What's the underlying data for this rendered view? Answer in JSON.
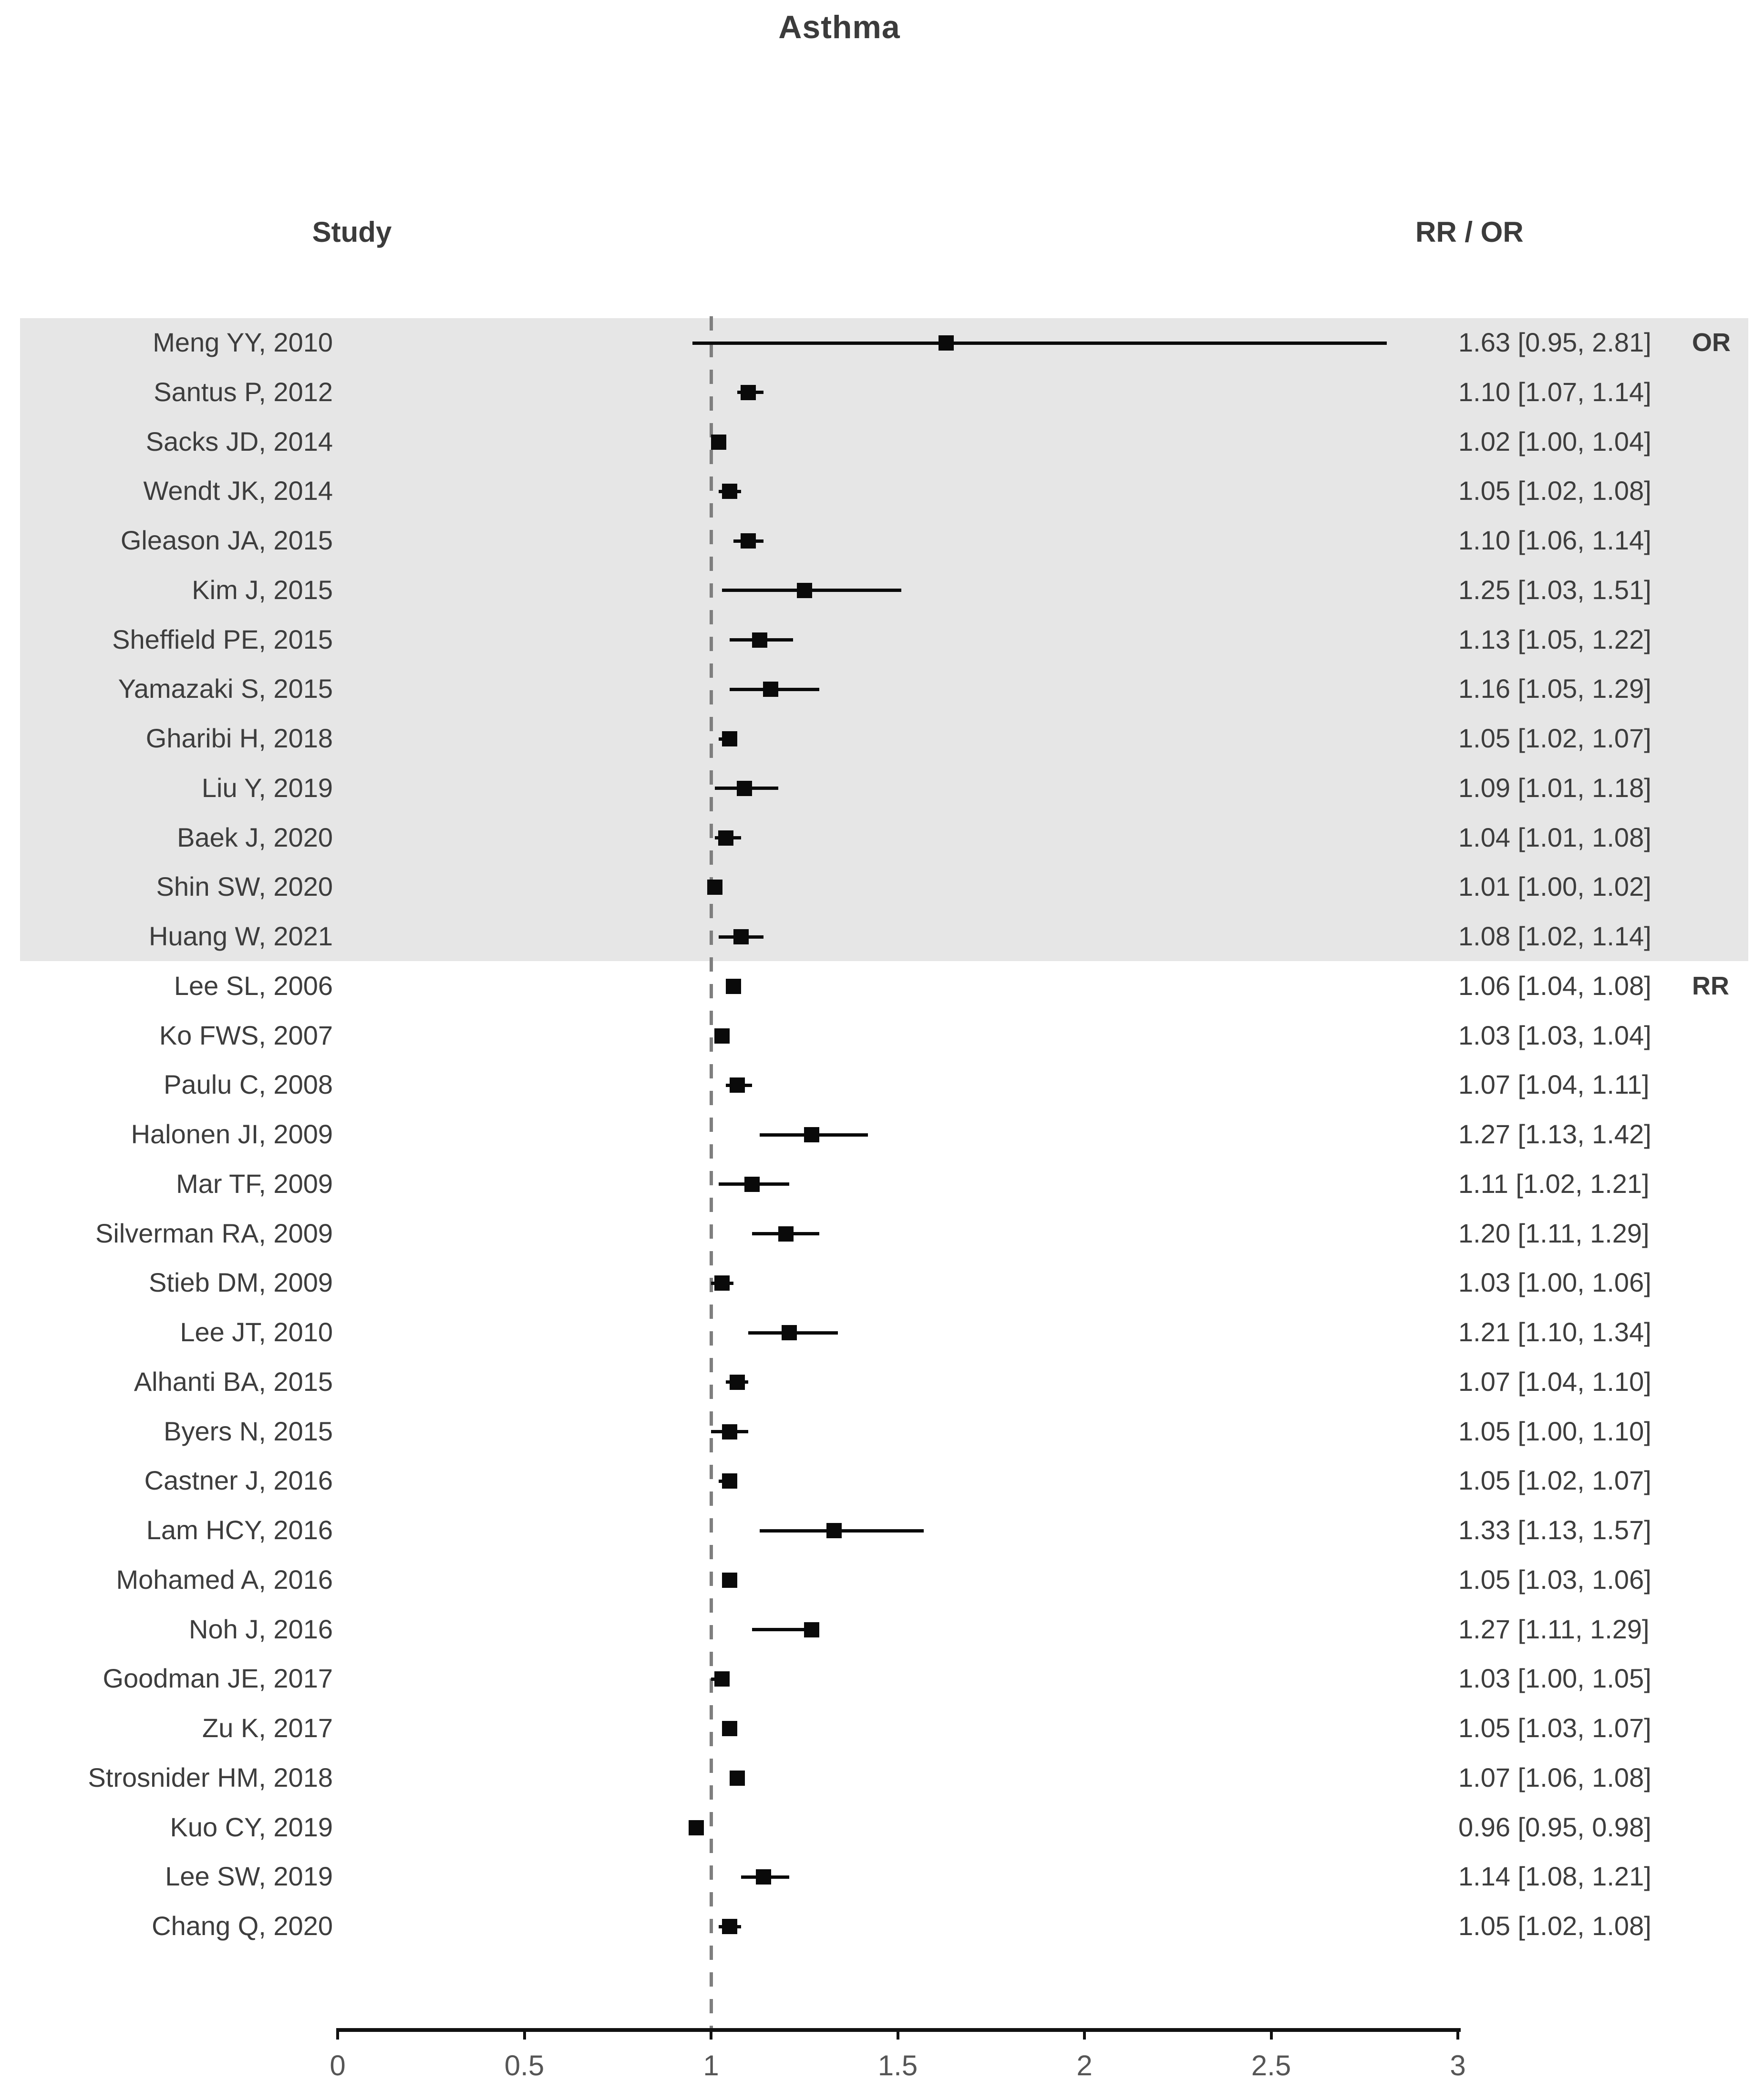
{
  "title": "Asthma",
  "headers": {
    "study": "Study",
    "effect": "RR / OR"
  },
  "colors": {
    "background": "#ffffff",
    "shaded_band": "#e6e6e6",
    "text": "#3d3d3d",
    "marker": "#0a0a0a",
    "reference_line": "#7f7f7f",
    "axis": "#111111",
    "tick_label": "#565656"
  },
  "chart_data": {
    "type": "forest",
    "title": "Asthma",
    "xlabel": "",
    "xlim": [
      0,
      3
    ],
    "x_ticks": [
      "0",
      "0.5",
      "1",
      "1.5",
      "2",
      "2.5",
      "3"
    ],
    "x_tick_values": [
      0,
      0.5,
      1,
      1.5,
      2,
      2.5,
      3
    ],
    "reference_line": 1,
    "grid": false,
    "legend": "none",
    "effect_column_header": "RR / OR",
    "study_column_header": "Study",
    "groups": [
      {
        "tag": "OR",
        "shaded": true,
        "n_studies": 13
      },
      {
        "tag": "RR",
        "shaded": false,
        "n_studies": 20
      }
    ],
    "studies": [
      {
        "study": "Meng YY, 2010",
        "estimate": 1.63,
        "lower": 0.95,
        "upper": 2.81,
        "label": "1.63 [0.95, 2.81]",
        "tag": "OR",
        "shaded": true
      },
      {
        "study": "Santus P, 2012",
        "estimate": 1.1,
        "lower": 1.07,
        "upper": 1.14,
        "label": "1.10 [1.07, 1.14]",
        "tag": "",
        "shaded": true
      },
      {
        "study": "Sacks JD, 2014",
        "estimate": 1.02,
        "lower": 1.0,
        "upper": 1.04,
        "label": "1.02 [1.00, 1.04]",
        "tag": "",
        "shaded": true
      },
      {
        "study": "Wendt JK, 2014",
        "estimate": 1.05,
        "lower": 1.02,
        "upper": 1.08,
        "label": "1.05 [1.02, 1.08]",
        "tag": "",
        "shaded": true
      },
      {
        "study": "Gleason JA, 2015",
        "estimate": 1.1,
        "lower": 1.06,
        "upper": 1.14,
        "label": "1.10 [1.06, 1.14]",
        "tag": "",
        "shaded": true
      },
      {
        "study": "Kim J, 2015",
        "estimate": 1.25,
        "lower": 1.03,
        "upper": 1.51,
        "label": "1.25 [1.03, 1.51]",
        "tag": "",
        "shaded": true
      },
      {
        "study": "Sheffield PE, 2015",
        "estimate": 1.13,
        "lower": 1.05,
        "upper": 1.22,
        "label": "1.13 [1.05, 1.22]",
        "tag": "",
        "shaded": true
      },
      {
        "study": "Yamazaki S, 2015",
        "estimate": 1.16,
        "lower": 1.05,
        "upper": 1.29,
        "label": "1.16 [1.05, 1.29]",
        "tag": "",
        "shaded": true
      },
      {
        "study": "Gharibi H, 2018",
        "estimate": 1.05,
        "lower": 1.02,
        "upper": 1.07,
        "label": "1.05 [1.02, 1.07]",
        "tag": "",
        "shaded": true
      },
      {
        "study": "Liu Y, 2019",
        "estimate": 1.09,
        "lower": 1.01,
        "upper": 1.18,
        "label": "1.09 [1.01, 1.18]",
        "tag": "",
        "shaded": true
      },
      {
        "study": "Baek J, 2020",
        "estimate": 1.04,
        "lower": 1.01,
        "upper": 1.08,
        "label": "1.04 [1.01, 1.08]",
        "tag": "",
        "shaded": true
      },
      {
        "study": "Shin SW, 2020",
        "estimate": 1.01,
        "lower": 1.0,
        "upper": 1.02,
        "label": "1.01 [1.00, 1.02]",
        "tag": "",
        "shaded": true
      },
      {
        "study": "Huang W, 2021",
        "estimate": 1.08,
        "lower": 1.02,
        "upper": 1.14,
        "label": "1.08 [1.02, 1.14]",
        "tag": "",
        "shaded": true
      },
      {
        "study": "Lee SL, 2006",
        "estimate": 1.06,
        "lower": 1.04,
        "upper": 1.08,
        "label": "1.06 [1.04, 1.08]",
        "tag": "RR",
        "shaded": false
      },
      {
        "study": "Ko FWS, 2007",
        "estimate": 1.03,
        "lower": 1.03,
        "upper": 1.04,
        "label": "1.03 [1.03, 1.04]",
        "tag": "",
        "shaded": false
      },
      {
        "study": "Paulu C, 2008",
        "estimate": 1.07,
        "lower": 1.04,
        "upper": 1.11,
        "label": "1.07 [1.04, 1.11]",
        "tag": "",
        "shaded": false
      },
      {
        "study": "Halonen JI, 2009",
        "estimate": 1.27,
        "lower": 1.13,
        "upper": 1.42,
        "label": "1.27 [1.13, 1.42]",
        "tag": "",
        "shaded": false
      },
      {
        "study": "Mar TF, 2009",
        "estimate": 1.11,
        "lower": 1.02,
        "upper": 1.21,
        "label": "1.11 [1.02, 1.21]",
        "tag": "",
        "shaded": false
      },
      {
        "study": "Silverman RA, 2009",
        "estimate": 1.2,
        "lower": 1.11,
        "upper": 1.29,
        "label": "1.20 [1.11, 1.29]",
        "tag": "",
        "shaded": false
      },
      {
        "study": "Stieb DM, 2009",
        "estimate": 1.03,
        "lower": 1.0,
        "upper": 1.06,
        "label": "1.03 [1.00, 1.06]",
        "tag": "",
        "shaded": false
      },
      {
        "study": "Lee JT, 2010",
        "estimate": 1.21,
        "lower": 1.1,
        "upper": 1.34,
        "label": "1.21 [1.10, 1.34]",
        "tag": "",
        "shaded": false
      },
      {
        "study": "Alhanti BA, 2015",
        "estimate": 1.07,
        "lower": 1.04,
        "upper": 1.1,
        "label": "1.07 [1.04, 1.10]",
        "tag": "",
        "shaded": false
      },
      {
        "study": "Byers N, 2015",
        "estimate": 1.05,
        "lower": 1.0,
        "upper": 1.1,
        "label": "1.05 [1.00, 1.10]",
        "tag": "",
        "shaded": false
      },
      {
        "study": "Castner J, 2016",
        "estimate": 1.05,
        "lower": 1.02,
        "upper": 1.07,
        "label": "1.05 [1.02, 1.07]",
        "tag": "",
        "shaded": false
      },
      {
        "study": "Lam HCY, 2016",
        "estimate": 1.33,
        "lower": 1.13,
        "upper": 1.57,
        "label": "1.33 [1.13, 1.57]",
        "tag": "",
        "shaded": false
      },
      {
        "study": "Mohamed A, 2016",
        "estimate": 1.05,
        "lower": 1.03,
        "upper": 1.06,
        "label": "1.05 [1.03, 1.06]",
        "tag": "",
        "shaded": false
      },
      {
        "study": "Noh J, 2016",
        "estimate": 1.27,
        "lower": 1.11,
        "upper": 1.29,
        "label": "1.27 [1.11, 1.29]",
        "tag": "",
        "shaded": false
      },
      {
        "study": "Goodman JE, 2017",
        "estimate": 1.03,
        "lower": 1.0,
        "upper": 1.05,
        "label": "1.03 [1.00, 1.05]",
        "tag": "",
        "shaded": false
      },
      {
        "study": "Zu K, 2017",
        "estimate": 1.05,
        "lower": 1.03,
        "upper": 1.07,
        "label": "1.05 [1.03, 1.07]",
        "tag": "",
        "shaded": false
      },
      {
        "study": "Strosnider HM, 2018",
        "estimate": 1.07,
        "lower": 1.06,
        "upper": 1.08,
        "label": "1.07 [1.06, 1.08]",
        "tag": "",
        "shaded": false
      },
      {
        "study": "Kuo CY, 2019",
        "estimate": 0.96,
        "lower": 0.95,
        "upper": 0.98,
        "label": "0.96 [0.95, 0.98]",
        "tag": "",
        "shaded": false
      },
      {
        "study": "Lee SW, 2019",
        "estimate": 1.14,
        "lower": 1.08,
        "upper": 1.21,
        "label": "1.14 [1.08, 1.21]",
        "tag": "",
        "shaded": false
      },
      {
        "study": "Chang Q, 2020",
        "estimate": 1.05,
        "lower": 1.02,
        "upper": 1.08,
        "label": "1.05 [1.02, 1.08]",
        "tag": "",
        "shaded": false
      }
    ]
  }
}
